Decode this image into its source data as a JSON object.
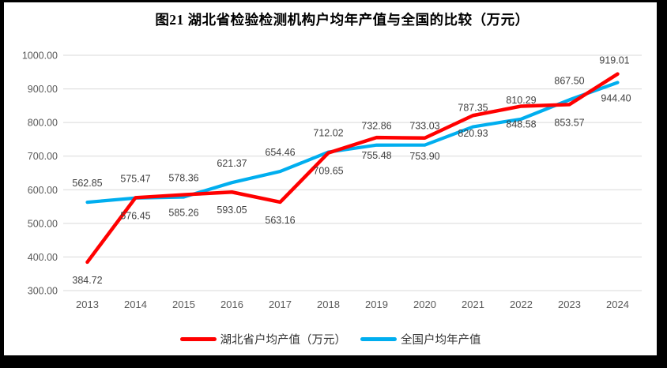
{
  "title": "图21 湖北省检验检测机构户均年产值与全国的比较（万元）",
  "chart_data": {
    "type": "line",
    "title": "图21 湖北省检验检测机构户均年产值与全国的比较（万元）",
    "categories": [
      "2013",
      "2014",
      "2015",
      "2016",
      "2017",
      "2018",
      "2019",
      "2020",
      "2021",
      "2022",
      "2023",
      "2024"
    ],
    "series": [
      {
        "name": "湖北省户均产值（万元）",
        "color": "#FF0000",
        "label_side": "below",
        "values": [
          384.72,
          576.45,
          585.26,
          593.05,
          563.16,
          709.65,
          755.48,
          753.9,
          820.93,
          848.58,
          853.57,
          944.4
        ]
      },
      {
        "name": "全国户均年产值",
        "color": "#00AEEF",
        "label_side": "above",
        "values": [
          562.85,
          575.47,
          578.36,
          621.37,
          654.46,
          712.02,
          732.86,
          733.03,
          787.35,
          810.29,
          867.5,
          919.01
        ]
      }
    ],
    "xlabel": "",
    "ylabel": "",
    "ylim": [
      300,
      1000
    ],
    "ytick_step": 100,
    "ytick_labels": [
      "300.00",
      "400.00",
      "500.00",
      "600.00",
      "700.00",
      "800.00",
      "900.00",
      "1000.00"
    ],
    "grid": "horizontal-only",
    "legend_position": "bottom",
    "colors": {
      "gridline": "#D9D9D9",
      "tick_label": "#595959",
      "data_label": "#404040",
      "frame": "#000000",
      "background": "#FFFFFF"
    }
  }
}
